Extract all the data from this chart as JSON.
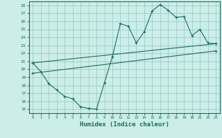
{
  "title": "",
  "xlabel": "Humidex (Indice chaleur)",
  "bg_color": "#cceee8",
  "grid_color": "#99cccc",
  "line_color": "#1a6b60",
  "xlim": [
    -0.5,
    23.5
  ],
  "ylim": [
    14.5,
    28.5
  ],
  "xticks": [
    0,
    1,
    2,
    3,
    4,
    5,
    6,
    7,
    8,
    9,
    10,
    11,
    12,
    13,
    14,
    15,
    16,
    17,
    18,
    19,
    20,
    21,
    22,
    23
  ],
  "yticks": [
    15,
    16,
    17,
    18,
    19,
    20,
    21,
    22,
    23,
    24,
    25,
    26,
    27,
    28
  ],
  "line1_x": [
    0,
    1,
    2,
    3,
    4,
    5,
    6,
    7,
    8,
    9,
    10,
    11,
    12,
    13,
    14,
    15,
    16,
    17,
    18,
    19,
    20,
    21,
    22,
    23
  ],
  "line1_y": [
    20.8,
    19.7,
    18.2,
    17.4,
    16.6,
    16.3,
    15.3,
    15.1,
    15.0,
    18.3,
    21.6,
    25.7,
    25.4,
    23.3,
    24.7,
    27.3,
    28.1,
    27.4,
    26.5,
    26.6,
    24.2,
    25.0,
    23.3,
    23.2
  ],
  "line2_x": [
    0,
    23
  ],
  "line2_y": [
    20.8,
    23.2
  ],
  "line3_x": [
    0,
    23
  ],
  "line3_y": [
    19.5,
    22.3
  ]
}
